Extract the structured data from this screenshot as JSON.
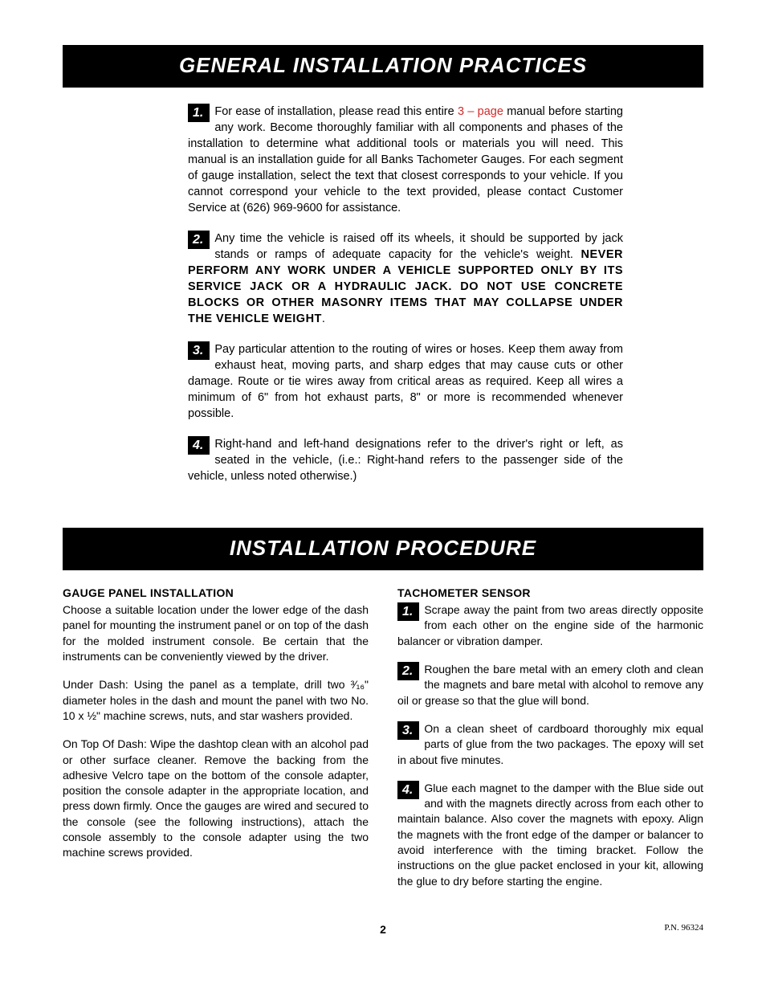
{
  "banners": {
    "general": "General Installation Practices",
    "procedure": "Installation Procedure"
  },
  "general": {
    "p1_pre": "For ease of installation, please read this entire ",
    "p1_red": "3 – page",
    "p1_post": " manual before starting any work. Become thoroughly familiar with all components and phases of the installation to determine what additional tools or materials you will need. This manual is an installation guide for all Banks Tachometer Gauges. For each segment of gauge installation, select the text that closest corresponds to your vehicle. If you cannot correspond your vehicle to the text provided, please contact Customer Service at (626) 969-9600 for assistance.",
    "p2_pre": "Any time the vehicle is raised off its wheels, it should be supported by jack stands or ramps of adequate capacity for the vehicle's weight. ",
    "p2_bold": "NEVER PERFORM ANY WORK UNDER A VEHICLE SUPPORTED ONLY BY ITS SERVICE JACK OR A HYDRAULIC JACK. DO NOT USE CONCRETE BLOCKS OR OTHER MASONRY ITEMS THAT MAY COLLAPSE UNDER THE VEHICLE WEIGHT",
    "p2_post": ".",
    "p3": "Pay particular attention to the routing of wires or hoses. Keep them away from exhaust heat, moving parts, and sharp edges that may cause cuts or other damage. Route or tie wires away from critical areas as required. Keep all wires a minimum of 6\" from hot exhaust parts, 8\" or more is recommended whenever possible.",
    "p4": "Right-hand and left-hand designations refer to the driver's right or left, as seated in the vehicle, (i.e.: Right-hand refers to the passenger side of the vehicle, unless noted otherwise.)"
  },
  "procedure": {
    "left": {
      "head": "Gauge Panel Installation",
      "p1": "Choose a suitable location under the lower edge of the dash panel for mounting the instrument panel or  on top of the dash for the molded instrument console. Be certain that the instruments can be conveniently viewed by the driver.",
      "p2": "Under Dash: Using the panel as a template, drill two ³⁄₁₆\" diameter holes in the dash and mount the panel with two No. 10 x ½\" machine screws, nuts, and star washers provided.",
      "p3": "On Top Of Dash: Wipe the dashtop clean with an alcohol pad or other surface cleaner. Remove the backing from the adhesive Velcro tape on the bottom of the console adapter, position the console adapter in the appropriate location, and press down firmly. Once the gauges are wired and secured to the console (see the following instructions), attach the console assembly to the console adapter using the two machine screws provided."
    },
    "right": {
      "head": "Tachometer Sensor",
      "p1": "Scrape away the paint from two areas directly opposite from each other on the engine side of the harmonic balancer or vibration damper.",
      "p2": "Roughen the bare metal with an emery cloth and clean the magnets and bare metal with alcohol to remove any oil or grease so that the glue will bond.",
      "p3": "On a clean sheet of cardboard thoroughly mix equal parts of glue from the two packages. The epoxy will set in about five minutes.",
      "p4": "Glue each magnet to the damper with the Blue side out and with the magnets directly across from each other to maintain balance. Also cover the magnets with epoxy. Align the magnets with the front edge of the damper or balancer to avoid interference with the timing bracket.  Follow the instructions on the glue packet enclosed in your kit, allowing the glue to dry before starting the engine."
    }
  },
  "footer": {
    "page": "2",
    "pn": "P.N. 96324"
  },
  "nums": {
    "n1": "1.",
    "n2": "2.",
    "n3": "3.",
    "n4": "4."
  },
  "colors": {
    "accent_red": "#d02b2b"
  }
}
